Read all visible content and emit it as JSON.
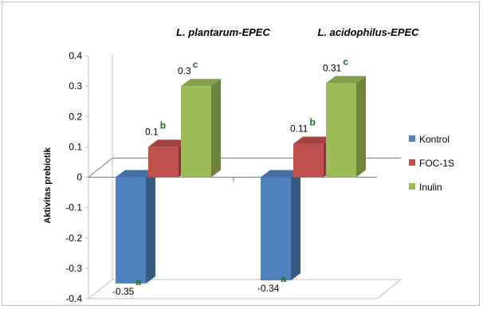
{
  "chart_data": {
    "type": "bar",
    "title": "",
    "ylabel": "Aktivitas prebiotik",
    "xlabel": "",
    "ylim": [
      -0.4,
      0.4
    ],
    "yticks": [
      "0.4",
      "0.3",
      "0.2",
      "0.1",
      "0",
      "-0.1",
      "-0.2",
      "-0.3",
      "-0.4"
    ],
    "categories": [
      "L. plantarum-EPEC",
      "L. acidophilus-EPEC"
    ],
    "series": [
      {
        "name": "Kontrol",
        "color": "#4f81bd",
        "values": [
          -0.35,
          -0.34
        ],
        "labels": [
          "-0.35",
          "-0.34"
        ],
        "sig": [
          "a",
          "a"
        ]
      },
      {
        "name": "FOC-1S",
        "color": "#c0504d",
        "values": [
          0.1,
          0.11
        ],
        "labels": [
          "0.1",
          "0.11"
        ],
        "sig": [
          "b",
          "b"
        ]
      },
      {
        "name": "Inulin",
        "color": "#9bbb59",
        "values": [
          0.3,
          0.31
        ],
        "labels": [
          "0.3",
          "0.31"
        ],
        "sig": [
          "c",
          "c"
        ]
      }
    ],
    "legend_position": "right",
    "grid": false
  }
}
